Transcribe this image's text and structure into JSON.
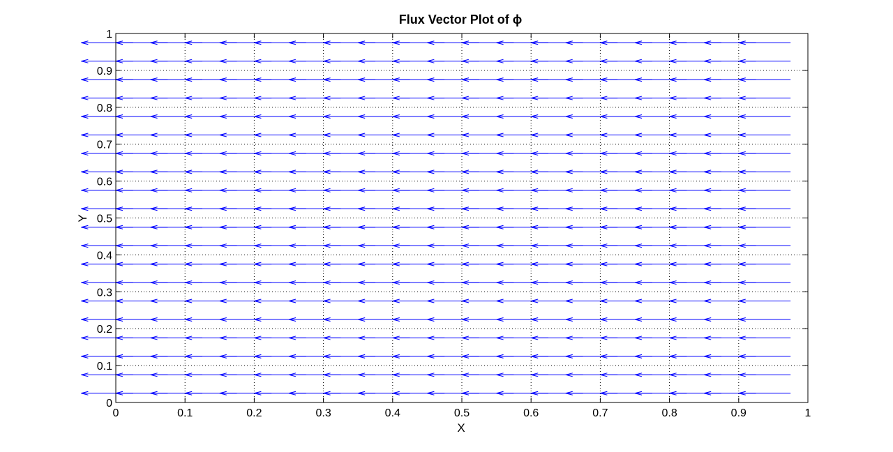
{
  "chart_data": {
    "type": "quiver",
    "title": "Flux Vector Plot of ϕ",
    "xlabel": "X",
    "ylabel": "Y",
    "xlim": [
      0,
      1
    ],
    "ylim": [
      0,
      1
    ],
    "xticks": [
      0,
      0.1,
      0.2,
      0.3,
      0.4,
      0.5,
      0.6,
      0.7,
      0.8,
      0.9,
      1
    ],
    "yticks": [
      0,
      0.1,
      0.2,
      0.3,
      0.4,
      0.5,
      0.6,
      0.7,
      0.8,
      0.9,
      1
    ],
    "xtick_labels": [
      "0",
      "0.1",
      "0.2",
      "0.3",
      "0.4",
      "0.5",
      "0.6",
      "0.7",
      "0.8",
      "0.9",
      "1"
    ],
    "ytick_labels": [
      "0",
      "0.1",
      "0.2",
      "0.3",
      "0.4",
      "0.5",
      "0.6",
      "0.7",
      "0.8",
      "0.9",
      "1"
    ],
    "grid": true,
    "grid_style": "dotted",
    "arrow_color": "#0000ff",
    "vector_x_positions": [
      0.025,
      0.075,
      0.125,
      0.175,
      0.225,
      0.275,
      0.325,
      0.375,
      0.425,
      0.475,
      0.525,
      0.575,
      0.625,
      0.675,
      0.725,
      0.775,
      0.825,
      0.875,
      0.925,
      0.975
    ],
    "vector_y_positions": [
      0.025,
      0.075,
      0.125,
      0.175,
      0.225,
      0.275,
      0.325,
      0.375,
      0.425,
      0.475,
      0.525,
      0.575,
      0.625,
      0.675,
      0.725,
      0.775,
      0.825,
      0.875,
      0.925,
      0.975
    ],
    "vector_u": -0.075,
    "vector_v": 0
  }
}
